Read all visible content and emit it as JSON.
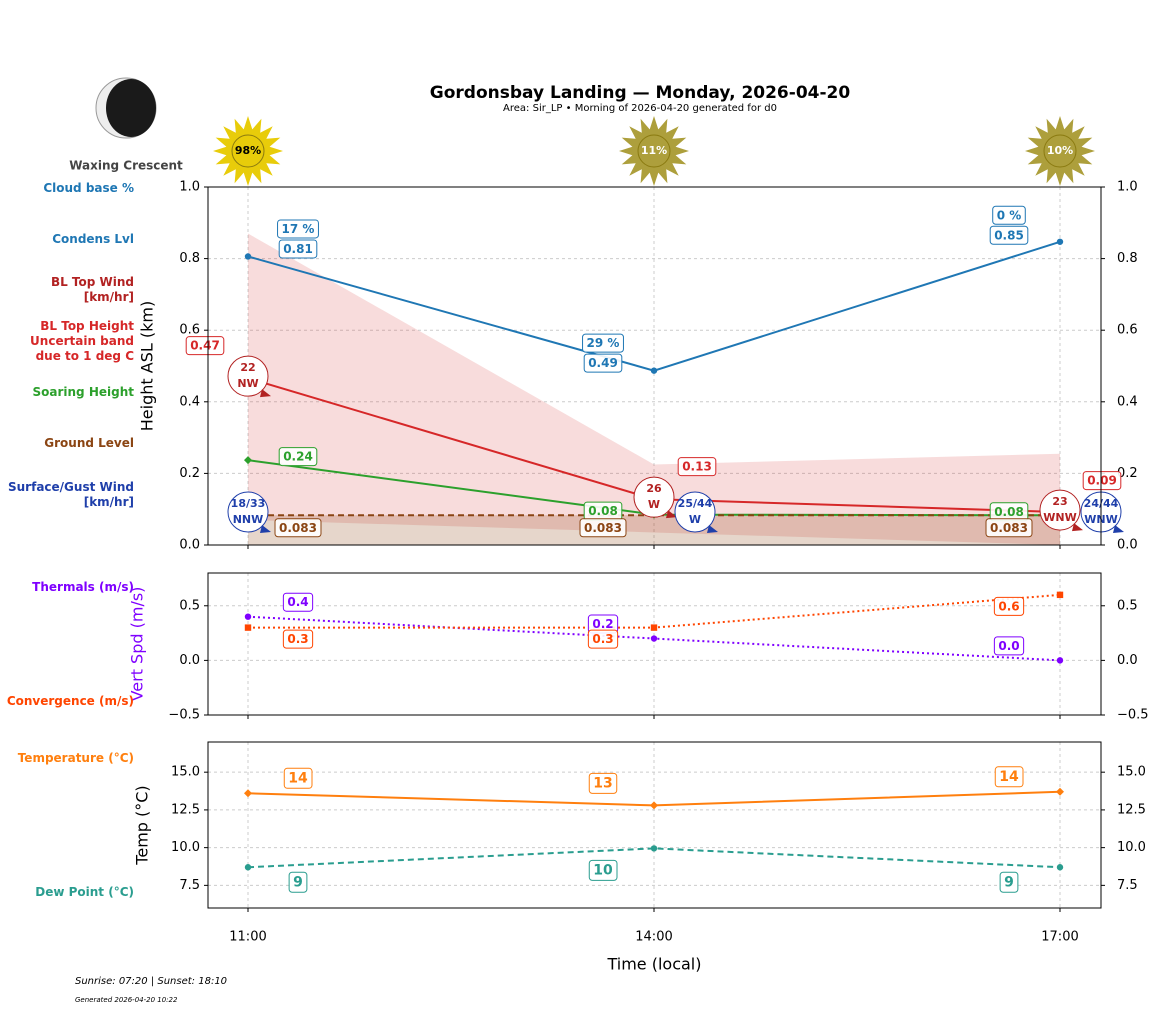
{
  "title": "Gordonsbay Landing — Monday, 2026-04-20",
  "subtitle": "Area: Sir_LP • Morning of 2026-04-20 generated for d0",
  "moon_phase": "Waxing Crescent",
  "sunshine": {
    "values": [
      98,
      11,
      10
    ],
    "value_labels": [
      "98%",
      "11%",
      "10%"
    ],
    "colors": [
      "#e8cc0a",
      "#ad9f3c",
      "#ad9f3c"
    ]
  },
  "footer": {
    "sun_times": "Sunrise: 07:20 | Sunset: 18:10",
    "generated": "Generated 2026-04-20 10:22"
  },
  "chart_data": [
    {
      "type": "line",
      "ylabel": "Height ASL (km)",
      "ylim": [
        0,
        1
      ],
      "yticks": [
        {
          "value": 0,
          "label": "0.0"
        },
        {
          "value": 0.2,
          "label": "0.2"
        },
        {
          "value": 0.4,
          "label": "0.4"
        },
        {
          "value": 0.6,
          "label": "0.6"
        },
        {
          "value": 0.8,
          "label": "0.8"
        },
        {
          "value": 1,
          "label": "1.0"
        }
      ],
      "y2lim": [
        0,
        1
      ],
      "y2ticks": [
        {
          "value": 0,
          "label": "0.0"
        },
        {
          "value": 0.2,
          "label": "0.2"
        },
        {
          "value": 0.4,
          "label": "0.4"
        },
        {
          "value": 0.6,
          "label": "0.6"
        },
        {
          "value": 0.8,
          "label": "0.8"
        },
        {
          "value": 1,
          "label": "1.0"
        }
      ],
      "grid": true,
      "cloud_base": {
        "name": "Cloud base %",
        "color": "#1f77b4",
        "values": [
          17,
          29,
          0
        ],
        "value_labels": [
          "17 %",
          "29 %",
          "0 %"
        ]
      },
      "series": [
        {
          "name": "Condens Lvl",
          "color": "#1f77b4",
          "style": "solid",
          "marker": "circle",
          "values": [
            0.806,
            0.487,
            0.847
          ],
          "value_labels": [
            "0.81",
            "0.49",
            "0.85"
          ]
        },
        {
          "name": "BL Top Height",
          "color": "#d62728",
          "style": "solid",
          "marker": "none",
          "values": [
            0.466,
            0.128,
            0.092
          ],
          "value_labels": [
            "0.47",
            "0.13",
            "0.09"
          ]
        },
        {
          "name": "Soaring Height",
          "color": "#2ca02c",
          "style": "solid",
          "marker": "diamond",
          "values": [
            0.237,
            0.085,
            0.083
          ],
          "value_labels": [
            "0.24",
            "0.08",
            "0.08"
          ]
        },
        {
          "name": "Ground Level",
          "color": "#8b4513",
          "style": "dashed",
          "marker": "none",
          "values": [
            0.083,
            0.083,
            0.083
          ],
          "value_labels": [
            "0.083",
            "0.083",
            "0.083"
          ]
        }
      ],
      "band": {
        "name": "Uncertain band due to 1 deg C",
        "color": "#d62728",
        "lower": [
          0.07,
          0.035,
          0.0
        ],
        "upper": [
          0.87,
          0.225,
          0.255
        ]
      },
      "bl_top_wind": {
        "name": "BL Top Wind [km/hr]",
        "color": "#b22222",
        "values": [
          22,
          26,
          23
        ],
        "directions": [
          "NW",
          "W",
          "WNW"
        ]
      },
      "surface_wind": {
        "name": "Surface/Gust Wind [km/hr]",
        "color": "#1f3faa",
        "values": [
          18,
          25,
          24
        ],
        "gusts": [
          33,
          44,
          44
        ],
        "value_labels": [
          "18/33",
          "25/44",
          "24/44"
        ],
        "directions": [
          "NNW",
          "W",
          "WNW"
        ]
      }
    },
    {
      "type": "line",
      "ylabel": "Vert Spd (m/s)",
      "ylabel_color": "#7f00ff",
      "ylim": [
        -0.5,
        0.8
      ],
      "yticks": [
        {
          "value": -0.5,
          "label": "−0.5"
        },
        {
          "value": 0,
          "label": "0.0"
        },
        {
          "value": 0.5,
          "label": "0.5"
        }
      ],
      "y2lim": [
        -0.5,
        0.8
      ],
      "y2ticks": [
        {
          "value": -0.5,
          "label": "−0.5"
        },
        {
          "value": 0,
          "label": "0.0"
        },
        {
          "value": 0.5,
          "label": "0.5"
        }
      ],
      "grid": true,
      "series": [
        {
          "name": "Thermals (m/s)",
          "color": "#7f00ff",
          "style": "dotted",
          "marker": "circle",
          "values": [
            0.4,
            0.2,
            0.0
          ],
          "value_labels": [
            "0.4",
            "0.2",
            "0.0"
          ]
        },
        {
          "name": "Convergence (m/s)",
          "color": "#ff4500",
          "style": "dotted",
          "marker": "square",
          "values": [
            0.3,
            0.3,
            0.6
          ],
          "value_labels": [
            "0.3",
            "0.3",
            "0.6"
          ]
        }
      ]
    },
    {
      "type": "line",
      "ylabel": "Temp (°C)",
      "xlabel": "Time (local)",
      "categories": [
        "11:00",
        "14:00",
        "17:00"
      ],
      "ylim": [
        6,
        17
      ],
      "yticks": [
        7.5,
        {
          "value": 10,
          "label": "10.0"
        },
        12.5,
        {
          "value": 15,
          "label": "15.0"
        }
      ],
      "y2lim": [
        6,
        17
      ],
      "y2ticks": [
        7.5,
        {
          "value": 10,
          "label": "10.0"
        },
        12.5,
        {
          "value": 15,
          "label": "15.0"
        }
      ],
      "grid": true,
      "series": [
        {
          "name": "Temperature (°C)",
          "color": "#ff7f0e",
          "style": "solid",
          "marker": "diamond",
          "values": [
            13.6,
            12.8,
            13.7
          ],
          "value_labels": [
            "14",
            "13",
            "14"
          ]
        },
        {
          "name": "Dew Point (°C)",
          "color": "#2a9d8f",
          "style": "dashed",
          "marker": "circle",
          "values": [
            8.7,
            9.95,
            8.7
          ],
          "value_labels": [
            "9",
            "10",
            "9"
          ]
        }
      ]
    }
  ]
}
